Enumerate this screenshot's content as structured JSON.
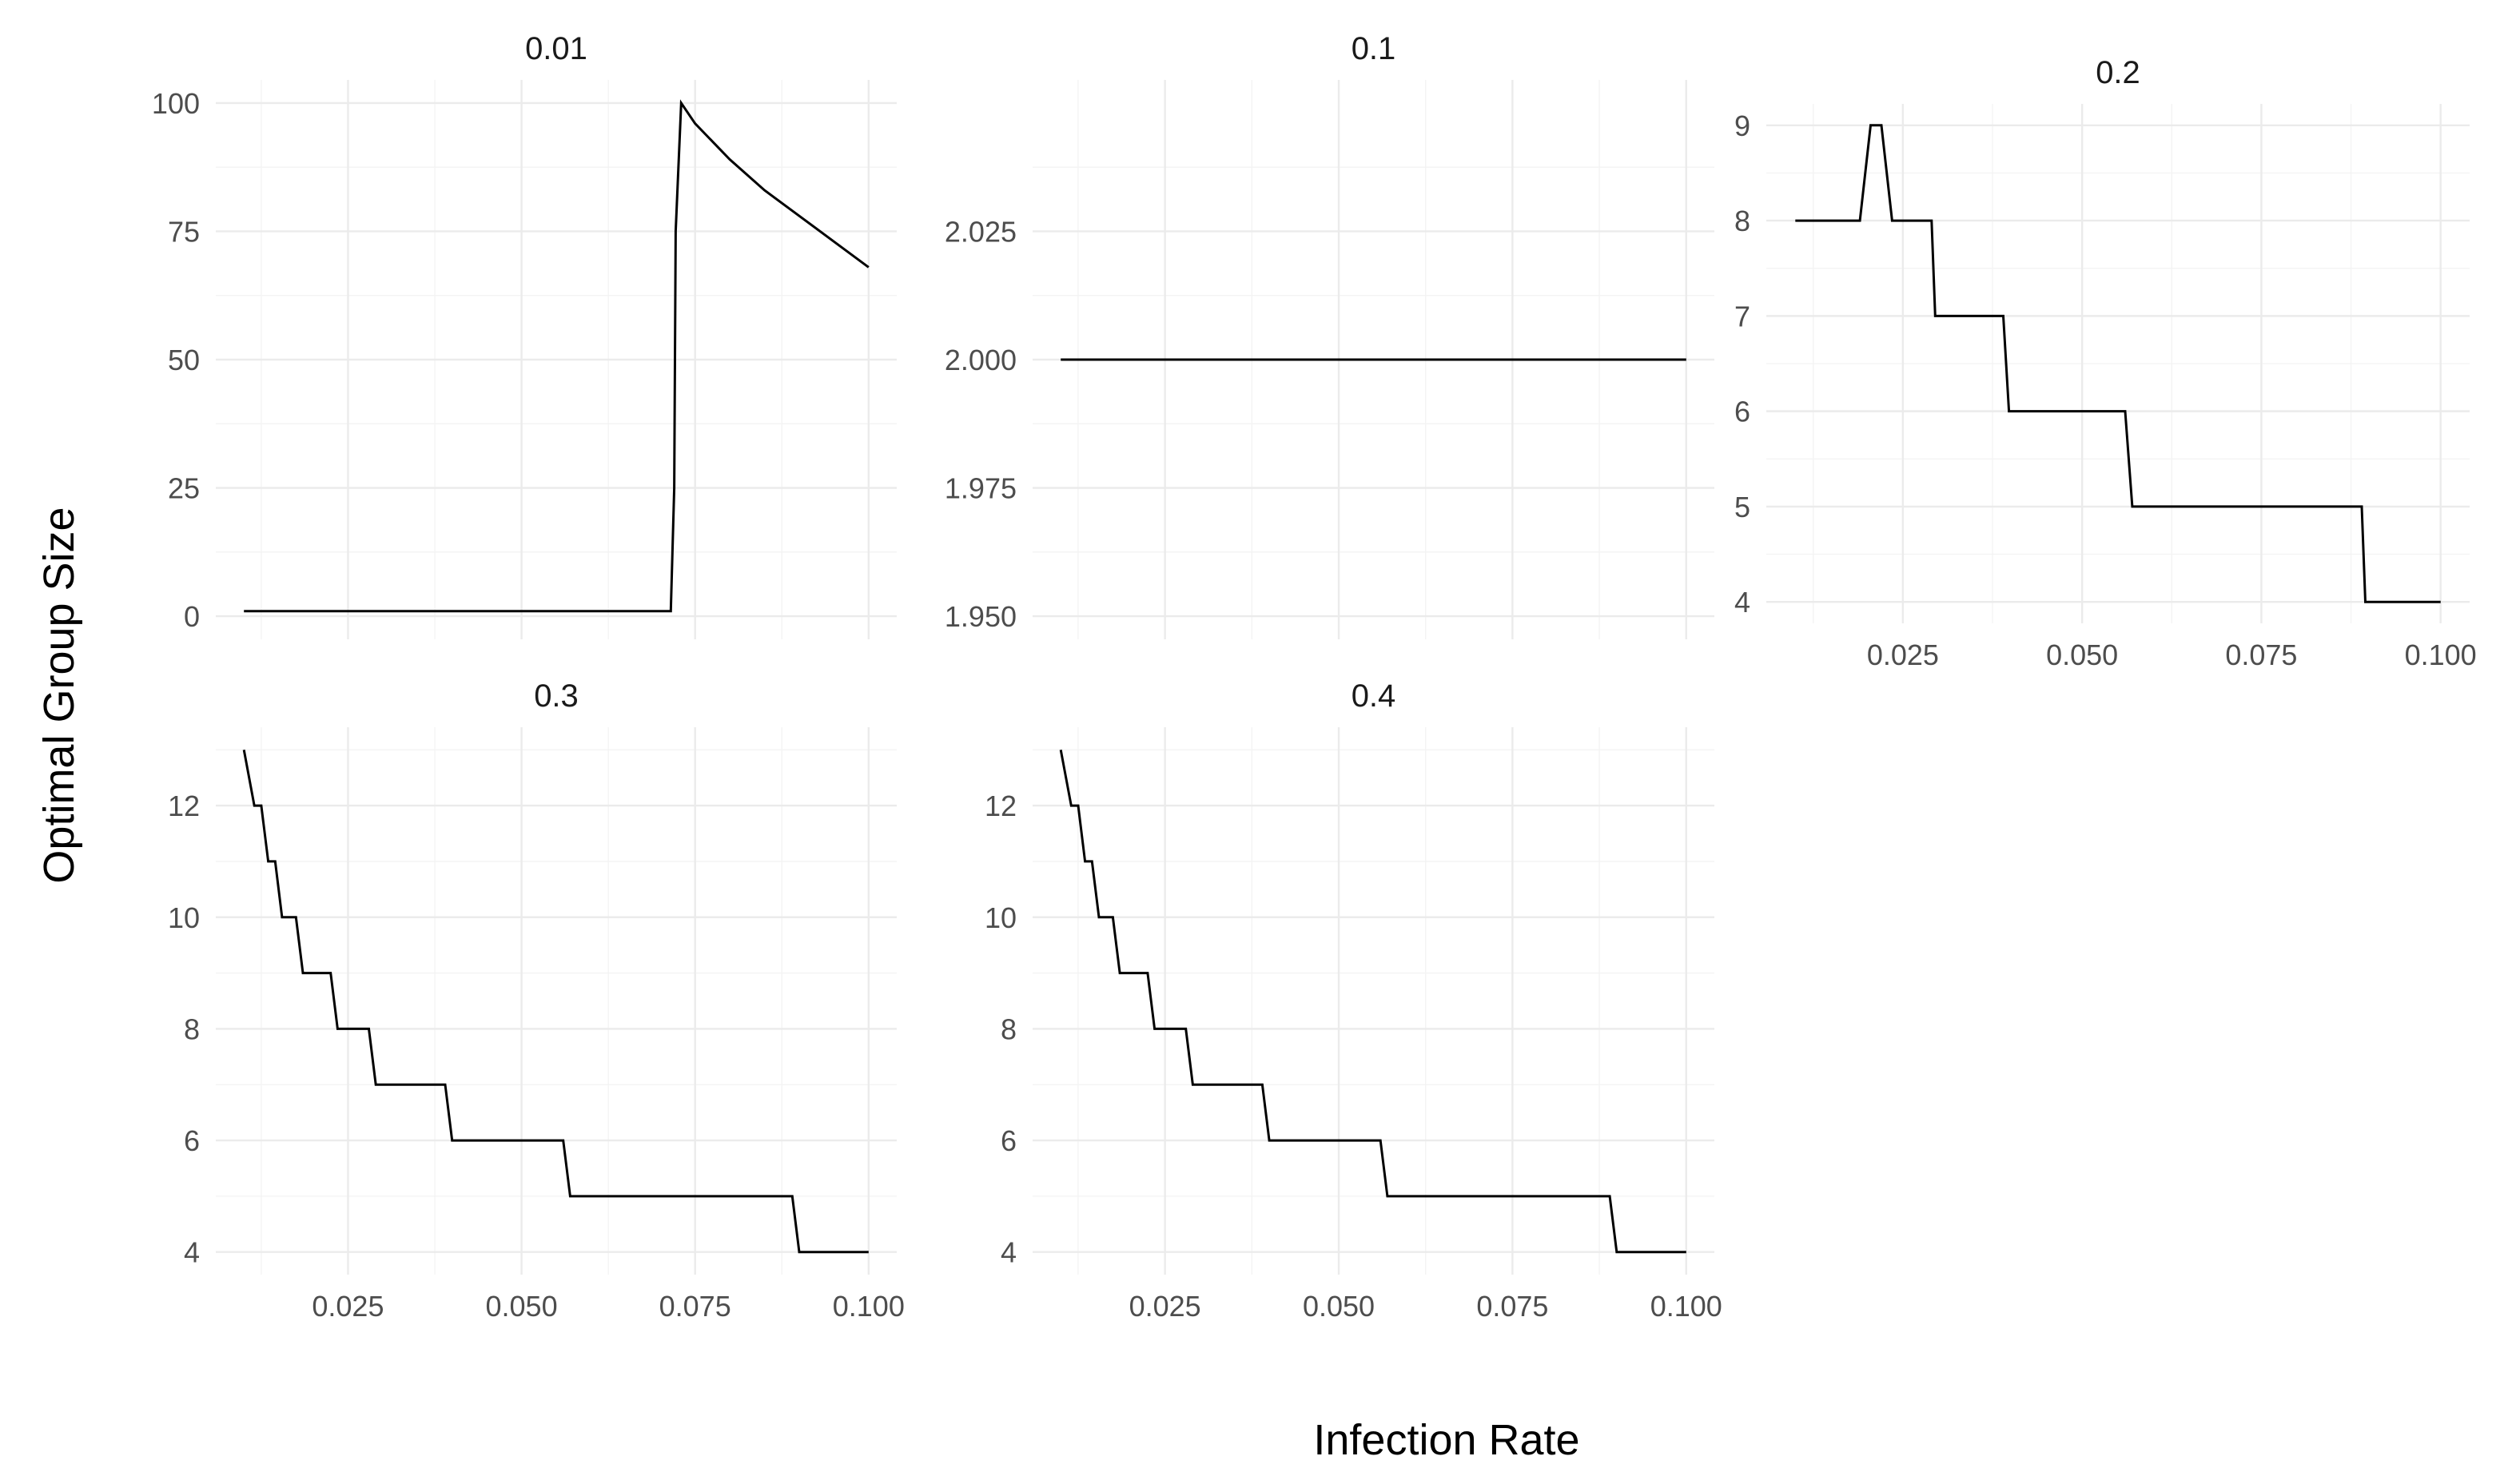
{
  "chart_data": {
    "type": "line",
    "xlabel": "Infection Rate",
    "ylabel": "Optimal Group Size",
    "grid": true,
    "x_ticks": [
      0.025,
      0.05,
      0.075,
      0.1
    ],
    "x_tick_labels": [
      "0.025",
      "0.050",
      "0.075",
      "0.100"
    ],
    "xlim": [
      0.01,
      0.1
    ],
    "panels": [
      {
        "label": "0.01",
        "ylim": [
          0,
          100
        ],
        "y_ticks": [
          0,
          25,
          50,
          75,
          100
        ],
        "y_tick_labels": [
          "0",
          "25",
          "50",
          "75",
          "100"
        ],
        "x": [
          0.01,
          0.0715,
          0.072,
          0.0722,
          0.073,
          0.075,
          0.08,
          0.085,
          0.09,
          0.095,
          0.1
        ],
        "y": [
          1,
          1,
          25,
          75,
          100,
          96,
          89,
          83,
          78,
          73,
          68
        ]
      },
      {
        "label": "0.1",
        "ylim": [
          1.95,
          2.05
        ],
        "y_ticks": [
          1.95,
          1.975,
          2.0,
          2.025
        ],
        "y_tick_labels": [
          "1.950",
          "1.975",
          "2.000",
          "2.025"
        ],
        "x": [
          0.01,
          0.1
        ],
        "y": [
          2,
          2
        ]
      },
      {
        "label": "0.2",
        "ylim": [
          4,
          9
        ],
        "y_ticks": [
          4,
          5,
          6,
          7,
          8,
          9
        ],
        "y_tick_labels": [
          "4",
          "5",
          "6",
          "7",
          "8",
          "9"
        ],
        "x": [
          0.01,
          0.019,
          0.0205,
          0.022,
          0.0235,
          0.029,
          0.0295,
          0.039,
          0.0398,
          0.056,
          0.057,
          0.089,
          0.0895,
          0.1
        ],
        "y": [
          8,
          8,
          9,
          9,
          8,
          8,
          7,
          7,
          6,
          6,
          5,
          5,
          4,
          4
        ]
      },
      {
        "label": "0.3",
        "ylim": [
          4,
          13
        ],
        "y_ticks": [
          4,
          6,
          8,
          10,
          12
        ],
        "y_tick_labels": [
          "4",
          "6",
          "8",
          "10",
          "12"
        ],
        "x": [
          0.01,
          0.0115,
          0.0125,
          0.0135,
          0.0145,
          0.0155,
          0.0175,
          0.0185,
          0.0225,
          0.0235,
          0.028,
          0.029,
          0.039,
          0.04,
          0.056,
          0.057,
          0.089,
          0.09,
          0.1
        ],
        "y": [
          13,
          12,
          12,
          11,
          11,
          10,
          10,
          9,
          9,
          8,
          8,
          7,
          7,
          6,
          6,
          5,
          5,
          4,
          4
        ]
      },
      {
        "label": "0.4",
        "ylim": [
          4,
          13
        ],
        "y_ticks": [
          4,
          6,
          8,
          10,
          12
        ],
        "y_tick_labels": [
          "4",
          "6",
          "8",
          "10",
          "12"
        ],
        "x": [
          0.01,
          0.0115,
          0.0125,
          0.0135,
          0.0145,
          0.0155,
          0.0175,
          0.0185,
          0.0225,
          0.0235,
          0.028,
          0.029,
          0.039,
          0.04,
          0.056,
          0.057,
          0.089,
          0.09,
          0.1
        ],
        "y": [
          13,
          12,
          12,
          11,
          11,
          10,
          10,
          9,
          9,
          8,
          8,
          7,
          7,
          6,
          6,
          5,
          5,
          4,
          4
        ]
      }
    ]
  }
}
